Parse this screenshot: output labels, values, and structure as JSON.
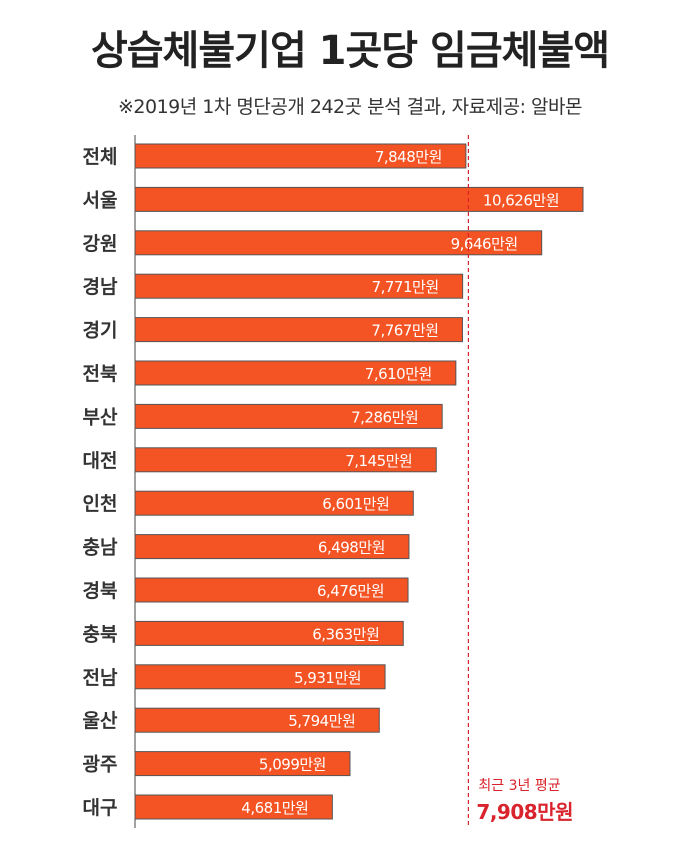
{
  "title": "상습체불기업 1곳당 임금체불액",
  "subtitle": "※2019년 1차 명단공개 242곳 분석 결과,  자료제공: 알바몬",
  "colors": {
    "bar": "#f45323",
    "bar_border": "#555555",
    "average_line": "#d9232d",
    "label_text": "#ffffff",
    "category_text": "#333333"
  },
  "chart_data": {
    "type": "bar",
    "orientation": "horizontal",
    "categories": [
      "전체",
      "서울",
      "강원",
      "경남",
      "경기",
      "전북",
      "부산",
      "대전",
      "인천",
      "충남",
      "경북",
      "충북",
      "전남",
      "울산",
      "광주",
      "대구"
    ],
    "values": [
      7848,
      10626,
      9646,
      7771,
      7767,
      7610,
      7286,
      7145,
      6601,
      6498,
      6476,
      6363,
      5931,
      5794,
      5099,
      4681
    ],
    "data_labels": [
      "7,848만원",
      "10,626만원",
      "9,646만원",
      "7,771만원",
      "7,767만원",
      "7,610만원",
      "7,286만원",
      "7,145만원",
      "6,601만원",
      "6,498만원",
      "6,476만원",
      "6,363만원",
      "5,931만원",
      "5,794만원",
      "5,099만원",
      "4,681만원"
    ],
    "unit": "만원",
    "reference_line": {
      "value": 7908,
      "label": "최근 3년 평균",
      "value_label": "7,908만원",
      "style": "dashed"
    },
    "xlim": [
      0,
      11000
    ],
    "grid": false
  }
}
